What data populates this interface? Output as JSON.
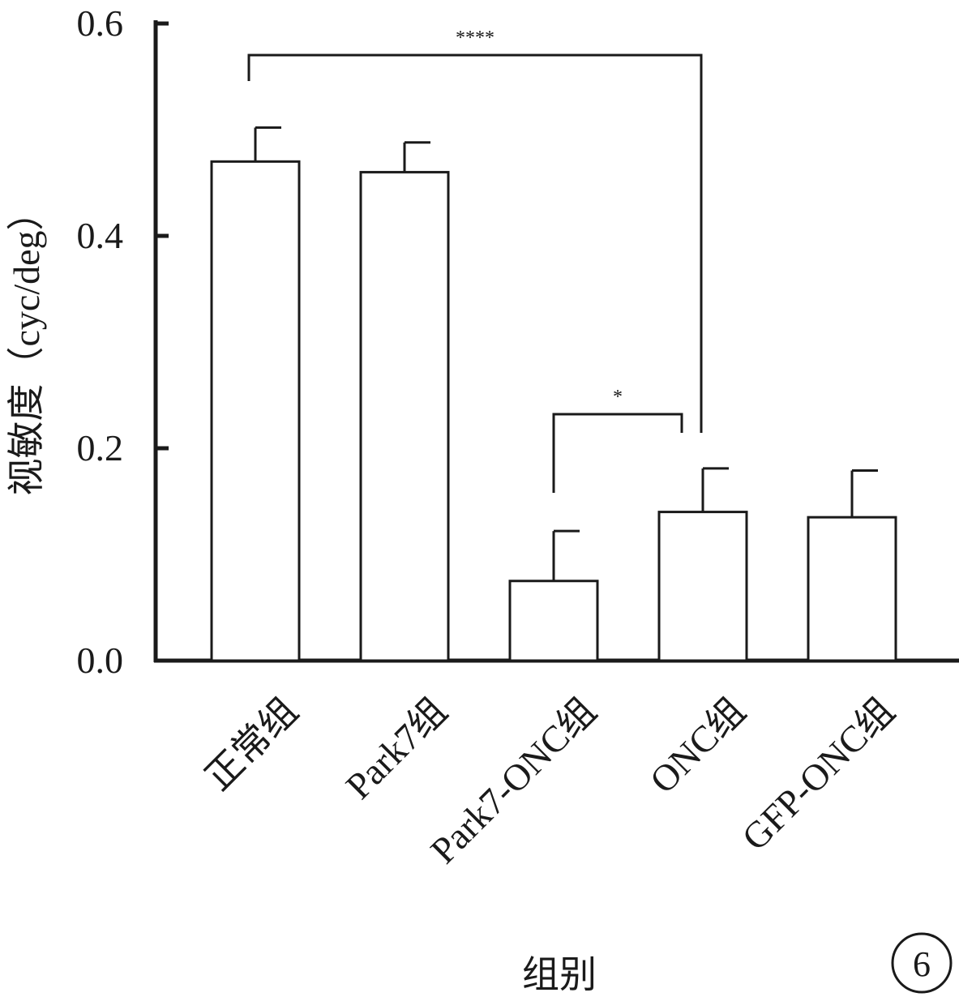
{
  "chart_data": {
    "type": "bar",
    "categories": [
      "正常组",
      "Park7组",
      "Park7-ONC组",
      "ONC组",
      "GFP-ONC组"
    ],
    "values": [
      0.47,
      0.46,
      0.075,
      0.14,
      0.135
    ],
    "errors": [
      0.032,
      0.028,
      0.047,
      0.041,
      0.044
    ],
    "ylabel": "视敏度（cyc/deg）",
    "xlabel": "组别",
    "ylim": [
      0,
      0.6
    ],
    "yticks": [
      "0.0",
      "0.2",
      "0.4",
      "0.6"
    ],
    "ytick_values": [
      0,
      0.2,
      0.4,
      0.6
    ],
    "grid": false,
    "significance": [
      {
        "from": "正常组",
        "to": "ONC组",
        "label": "****"
      },
      {
        "from": "Park7-ONC组",
        "to": "ONC组",
        "label": "*"
      }
    ]
  },
  "panel_label": "6"
}
